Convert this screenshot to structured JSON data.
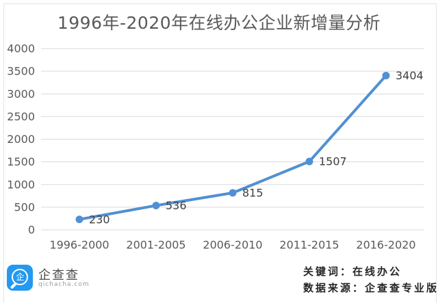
{
  "title": "1996年-2020年在线办公企业新增量分析",
  "chart_data": {
    "type": "line",
    "categories": [
      "1996-2000",
      "2001-2005",
      "2006-2010",
      "2011-2015",
      "2016-2020"
    ],
    "values": [
      230,
      536,
      815,
      1507,
      3404
    ],
    "title": "1996年-2020年在线办公企业新增量分析",
    "xlabel": "",
    "ylabel": "",
    "ylim": [
      0,
      4000
    ],
    "ytick_step": 500,
    "grid": "horizontal",
    "legend_position": "none",
    "marker": "circle",
    "data_labels": [
      "230",
      "536",
      "815",
      "1507",
      "3404"
    ]
  },
  "colors": {
    "line": "#5190d2",
    "marker": "#5190d2",
    "grid": "#d9d9d9",
    "axis_text": "#595959",
    "data_label_text": "#404040",
    "title_text": "#595959",
    "logo_blue": "#2499ef",
    "footer_text": "#262626"
  },
  "footer": {
    "logo_text": "企查查",
    "logo_domain": "qichacha.com",
    "logo_glyph": "企",
    "keyword_line": "关键词：在线办公",
    "source_line": "数据来源：企查查专业版"
  }
}
